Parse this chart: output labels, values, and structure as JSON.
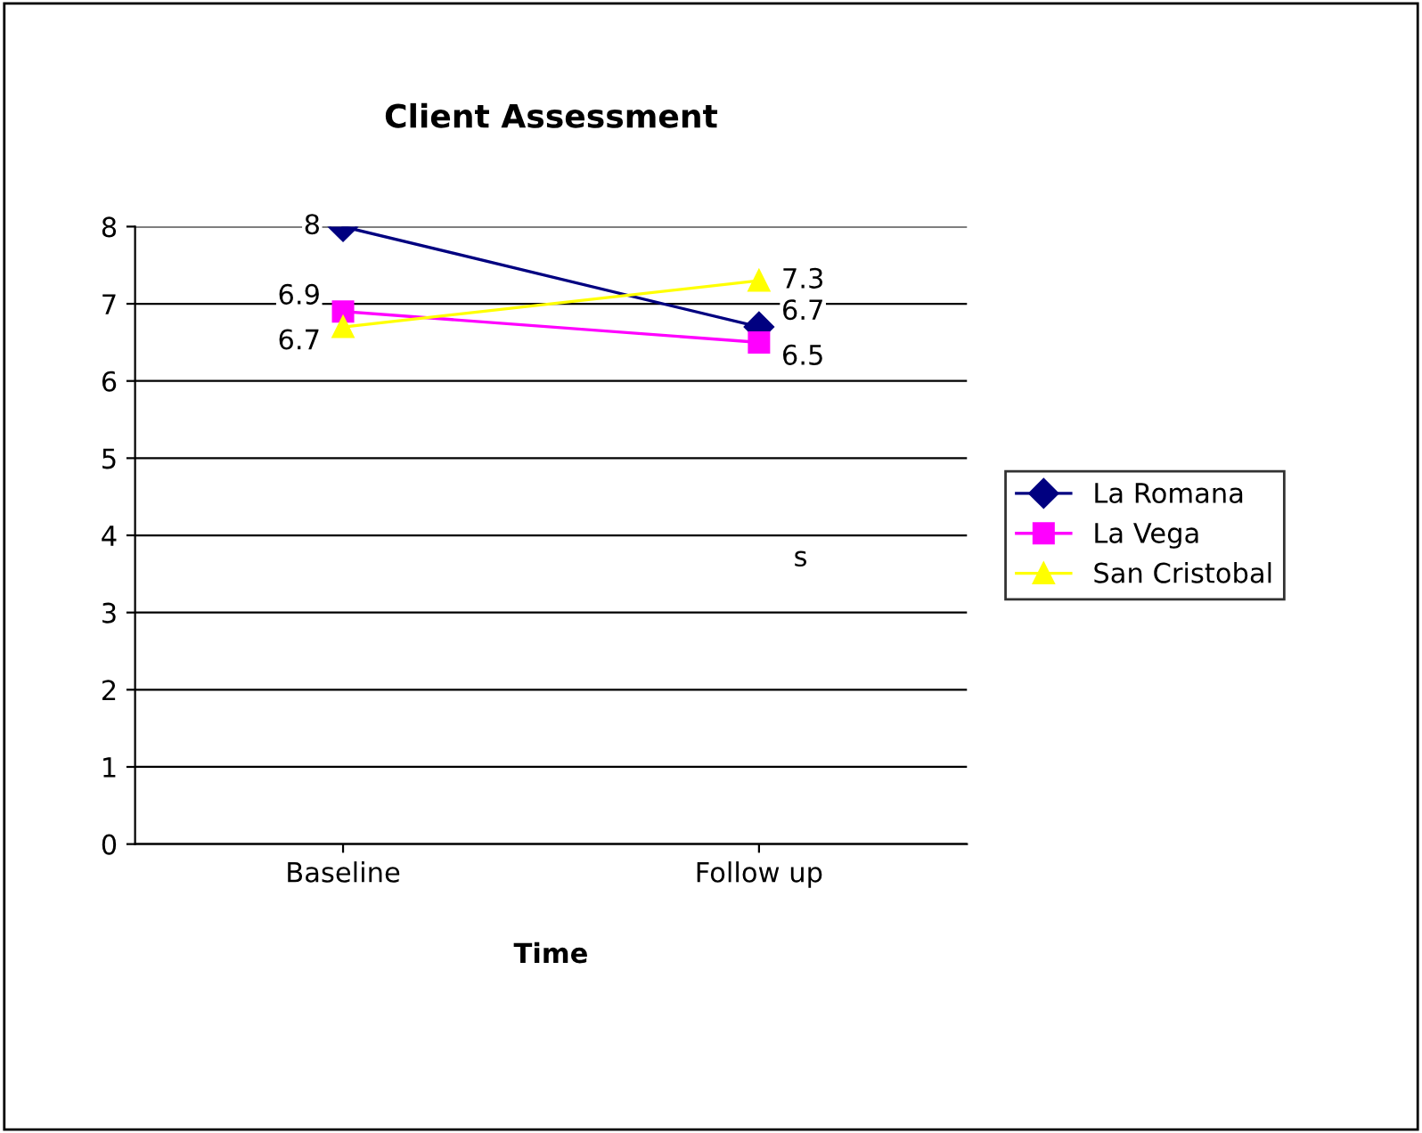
{
  "chart_data": {
    "type": "line",
    "title": "Client Assessment",
    "xlabel": "Time",
    "categories": [
      "Baseline",
      "Follow up"
    ],
    "series": [
      {
        "name": "La Romana",
        "color": "#000080",
        "marker": "diamond",
        "values": [
          8,
          6.7
        ]
      },
      {
        "name": "La Vega",
        "color": "#ff00ff",
        "marker": "square",
        "values": [
          6.9,
          6.5
        ]
      },
      {
        "name": "San Cristobal",
        "color": "#ffff00",
        "marker": "triangle",
        "values": [
          6.7,
          7.3
        ]
      }
    ],
    "ylim": [
      0,
      8
    ],
    "yticks": [
      0,
      1,
      2,
      3,
      4,
      5,
      6,
      7,
      8
    ],
    "grid": "y",
    "legend": "right",
    "data_labels": true,
    "annotations": [
      "s"
    ]
  }
}
